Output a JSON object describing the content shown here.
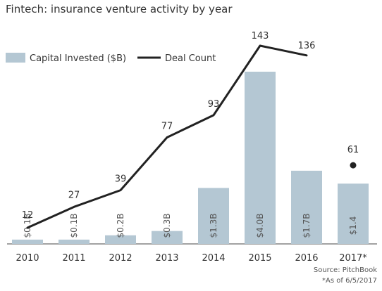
{
  "chart_data": {
    "type": "bar",
    "title": "Fintech: insurance venture activity by year",
    "categories": [
      "2010",
      "2011",
      "2012",
      "2013",
      "2014",
      "2015",
      "2016",
      "2017*"
    ],
    "series": [
      {
        "name": "Capital Invested ($B)",
        "kind": "bar",
        "values": [
          0.1,
          0.1,
          0.2,
          0.3,
          1.3,
          4.0,
          1.7,
          1.4
        ],
        "labels": [
          "$0.1B",
          "$0.1B",
          "$0.2B",
          "$0.3B",
          "$1.3B",
          "$4.0B",
          "$1.7B",
          "$1.4"
        ],
        "color": "#b4c7d3"
      },
      {
        "name": "Deal Count",
        "kind": "line",
        "values": [
          12,
          27,
          39,
          77,
          93,
          143,
          136,
          61
        ],
        "labels": [
          "12",
          "27",
          "39",
          "77",
          "93",
          "143",
          "136",
          "61"
        ],
        "line_through_index": 6,
        "last_point_marker_only": true,
        "color": "#222222"
      }
    ],
    "legend": {
      "placement": "top-left"
    },
    "grid": false,
    "source_note": "Source: PitchBook",
    "footnote": "*As of 6/5/2017"
  },
  "colors": {
    "bar": "#b4c7d3",
    "line": "#222222",
    "axis": "#444444",
    "text": "#333333"
  }
}
